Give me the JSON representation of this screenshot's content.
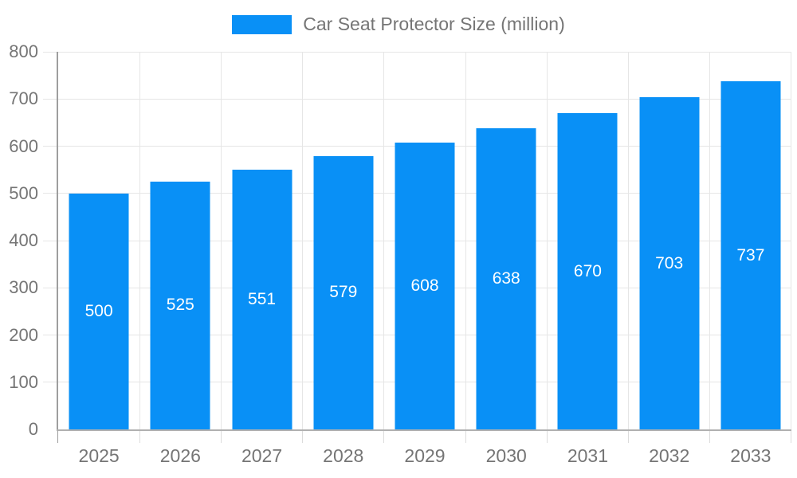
{
  "legend": {
    "label": "Car Seat Protector Size (million)"
  },
  "chart_data": {
    "type": "bar",
    "title": "Car Seat Protector Size (million)",
    "categories": [
      "2025",
      "2026",
      "2027",
      "2028",
      "2029",
      "2030",
      "2031",
      "2032",
      "2033"
    ],
    "values": [
      500,
      525,
      551,
      579,
      608,
      638,
      670,
      703,
      737
    ],
    "xlabel": "",
    "ylabel": "",
    "ylim": [
      0,
      800
    ],
    "ytick_interval": 100,
    "grid": true,
    "legend_position": "top-center",
    "bar_color": "#0990F6",
    "value_label_color": "#ffffff",
    "axis_text_color": "#757575",
    "grid_color": "#e6e6e6",
    "x_axis_line_color": "#b0b0b0",
    "y_axis_line_color": "#9e9e9e",
    "tick_color": "#dcdcdc"
  }
}
